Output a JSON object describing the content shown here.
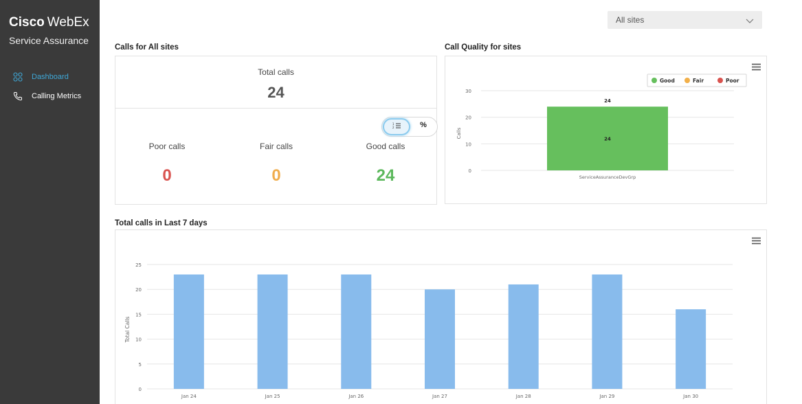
{
  "sidebar": {
    "brand_bold": "Cisco",
    "brand_light": "WebEx",
    "subtitle": "Service Assurance",
    "items": [
      {
        "label": "Dashboard",
        "icon": "grid-icon",
        "active": true
      },
      {
        "label": "Calling Metrics",
        "icon": "phone-icon",
        "active": false
      }
    ]
  },
  "header": {
    "site_select": {
      "value": "All sites"
    }
  },
  "summary": {
    "title": "Calls for All sites",
    "total_label": "Total calls",
    "total_value": "24",
    "toggle_percent": "%",
    "metrics": [
      {
        "label": "Poor calls",
        "value": "0",
        "color": "#d9534f"
      },
      {
        "label": "Fair calls",
        "value": "0",
        "color": "#f0ad4e"
      },
      {
        "label": "Good calls",
        "value": "24",
        "color": "#5cb85c"
      }
    ]
  },
  "quality": {
    "title": "Call Quality for sites"
  },
  "trend": {
    "title": "Total calls in Last 7 days"
  },
  "chart_data": [
    {
      "type": "bar",
      "title": "Call Quality for sites",
      "xlabel": "",
      "ylabel": "Calls",
      "categories": [
        "ServiceAssuranceDevGrp"
      ],
      "series": [
        {
          "name": "Good",
          "values": [
            24
          ],
          "color": "#66bf5d"
        },
        {
          "name": "Fair",
          "values": [
            0
          ],
          "color": "#f2b04a"
        },
        {
          "name": "Poor",
          "values": [
            0
          ],
          "color": "#d9534f"
        }
      ],
      "stacked": true,
      "total_labels": [
        "24"
      ],
      "ylim": [
        0,
        30
      ],
      "yticks": [
        0,
        10,
        20,
        30
      ],
      "grid": true,
      "legend": "top-right"
    },
    {
      "type": "bar",
      "title": "Total calls in Last 7 days",
      "xlabel": "",
      "ylabel": "Total Calls",
      "categories": [
        "Jan 24",
        "Jan 25",
        "Jan 26",
        "Jan 27",
        "Jan 28",
        "Jan 29",
        "Jan 30"
      ],
      "values": [
        23,
        23,
        23,
        20,
        21,
        23,
        16
      ],
      "color": "#88bbec",
      "ylim": [
        0,
        25
      ],
      "yticks": [
        0,
        5,
        10,
        15,
        20,
        25
      ],
      "grid": true,
      "legend": "none"
    }
  ]
}
